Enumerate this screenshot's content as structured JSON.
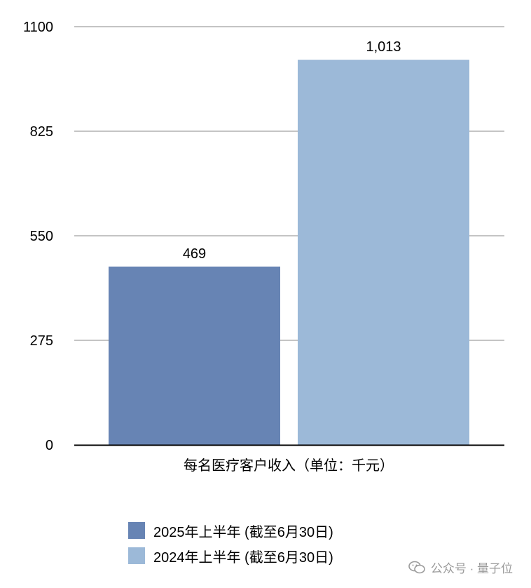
{
  "chart_data": {
    "type": "bar",
    "categories": [
      "每名医疗客户收入（单位：千元）"
    ],
    "series": [
      {
        "name": "2025年上半年 (截至6月30日)",
        "values": [
          469
        ],
        "label": "469",
        "color": "#6784b4"
      },
      {
        "name": "2024年上半年 (截至6月30日)",
        "values": [
          1013
        ],
        "label": "1,013",
        "color": "#9cb9d8"
      }
    ],
    "ylim": [
      0,
      1100
    ],
    "yticks": [
      "0",
      "275",
      "550",
      "825",
      "1100"
    ],
    "grid": true,
    "legend_position": "bottom"
  },
  "watermark": {
    "text": "公众号 · 量子位",
    "icon": "wechat-icon"
  }
}
